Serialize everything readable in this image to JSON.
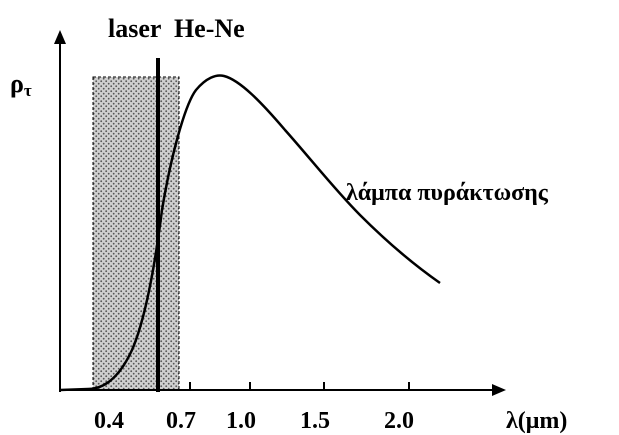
{
  "title": "laser  He-Ne",
  "y_label_main": "ρ",
  "y_label_sub": "τ",
  "x_label": "λ(μm)",
  "curve_label": "λάμπα πυράκτωσης",
  "tick_labels": [
    "0.4",
    "0.7",
    "1.0",
    "1.5",
    "2.0"
  ],
  "chart_data": {
    "type": "line",
    "xlabel": "λ(μm)",
    "ylabel": "ρτ",
    "x_ticks": [
      0.4,
      0.7,
      1.0,
      1.5,
      2.0
    ],
    "series": [
      {
        "name": "λάμπα πυράκτωσης",
        "x": [
          0.2,
          0.3,
          0.4,
          0.5,
          0.6,
          0.7,
          0.8,
          0.9,
          1.0,
          1.1,
          1.2,
          1.3,
          1.4,
          1.5,
          1.6,
          1.7,
          1.8,
          1.9,
          2.0,
          2.1,
          2.2
        ],
        "y": [
          0.0,
          0.02,
          0.08,
          0.24,
          0.52,
          0.8,
          0.95,
          1.0,
          0.98,
          0.92,
          0.85,
          0.77,
          0.69,
          0.61,
          0.54,
          0.48,
          0.43,
          0.39,
          0.35,
          0.31,
          0.28
        ]
      }
    ],
    "laser_line_x": 0.633,
    "visible_band": [
      0.4,
      0.7
    ]
  }
}
